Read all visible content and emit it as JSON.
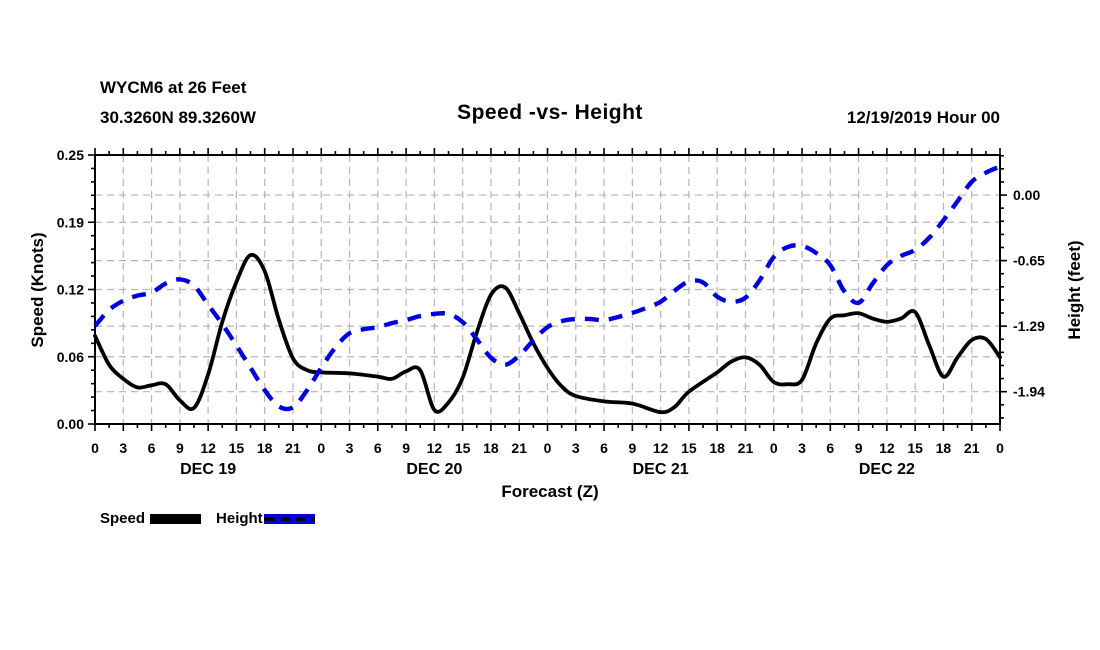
{
  "header": {
    "station_line1": "WYCM6 at 26 Feet",
    "station_line2": "30.3260N 89.3260W",
    "title": "Speed -vs- Height",
    "datetime": "12/19/2019 Hour 00"
  },
  "legend": {
    "speed_label": "Speed",
    "height_label": "Height"
  },
  "colors": {
    "speed": "#000000",
    "height": "#0000dd",
    "grid": "#b5b5b5",
    "axis": "#000000",
    "background": "#ffffff"
  },
  "chart_data": {
    "type": "line",
    "title": "Speed -vs- Height",
    "x_axis": {
      "label": "Forecast (Z)",
      "range_hours": [
        0,
        96
      ],
      "major_tick_every_h": 3,
      "minor_tick_every_h": 1.5,
      "hour_labels": [
        "0",
        "3",
        "6",
        "9",
        "12",
        "15",
        "18",
        "21",
        "0",
        "3",
        "6",
        "9",
        "12",
        "15",
        "18",
        "21",
        "0",
        "3",
        "6",
        "9",
        "12",
        "15",
        "18",
        "21",
        "0",
        "3",
        "6",
        "9",
        "12",
        "15",
        "18",
        "21",
        "0"
      ],
      "day_labels": [
        "DEC 19",
        "DEC 20",
        "DEC 21",
        "DEC 22"
      ]
    },
    "y_left": {
      "label": "Speed (Knots)",
      "ticks": [
        "0.25",
        "0.19",
        "0.12",
        "0.06",
        "0.00"
      ],
      "tick_values": [
        0.25,
        0.1875,
        0.125,
        0.0625,
        0
      ],
      "range": [
        0,
        0.25
      ],
      "minor_step": 0.0125
    },
    "y_right": {
      "label": "Height (feet)",
      "ticks": [
        "0.00",
        "-0.65",
        "-1.29",
        "-1.94"
      ],
      "tick_values": [
        0,
        -0.645,
        -1.29,
        -1.935
      ],
      "range": [
        -2.253,
        0.394
      ],
      "minor_step": 0.129
    },
    "grid": true,
    "legend_position": "bottom-left",
    "series": [
      {
        "name": "Speed",
        "axis": "left",
        "style": "solid",
        "color": "#000000",
        "points": [
          [
            0,
            0.082
          ],
          [
            1.5,
            0.055
          ],
          [
            3,
            0.042
          ],
          [
            4.5,
            0.034
          ],
          [
            6,
            0.036
          ],
          [
            7.5,
            0.037
          ],
          [
            9,
            0.022
          ],
          [
            10.5,
            0.015
          ],
          [
            12,
            0.046
          ],
          [
            13.5,
            0.095
          ],
          [
            15,
            0.132
          ],
          [
            16.5,
            0.157
          ],
          [
            18,
            0.142
          ],
          [
            19.5,
            0.097
          ],
          [
            21,
            0.061
          ],
          [
            22.5,
            0.05
          ],
          [
            24,
            0.048
          ],
          [
            27,
            0.047
          ],
          [
            30,
            0.044
          ],
          [
            31.5,
            0.042
          ],
          [
            33,
            0.049
          ],
          [
            34.5,
            0.05
          ],
          [
            36,
            0.013
          ],
          [
            37.5,
            0.02
          ],
          [
            39,
            0.043
          ],
          [
            40.5,
            0.085
          ],
          [
            42,
            0.12
          ],
          [
            43.5,
            0.127
          ],
          [
            45,
            0.103
          ],
          [
            46.5,
            0.075
          ],
          [
            48,
            0.052
          ],
          [
            49.5,
            0.035
          ],
          [
            51,
            0.026
          ],
          [
            54,
            0.021
          ],
          [
            57,
            0.019
          ],
          [
            60,
            0.011
          ],
          [
            61.5,
            0.016
          ],
          [
            63,
            0.03
          ],
          [
            66,
            0.048
          ],
          [
            67.5,
            0.058
          ],
          [
            69,
            0.062
          ],
          [
            70.5,
            0.055
          ],
          [
            72,
            0.039
          ],
          [
            73.5,
            0.037
          ],
          [
            75,
            0.041
          ],
          [
            76.5,
            0.075
          ],
          [
            78,
            0.098
          ],
          [
            79.5,
            0.101
          ],
          [
            81,
            0.103
          ],
          [
            82.5,
            0.098
          ],
          [
            84,
            0.095
          ],
          [
            85.5,
            0.098
          ],
          [
            87,
            0.104
          ],
          [
            88.5,
            0.073
          ],
          [
            90,
            0.044
          ],
          [
            91.5,
            0.062
          ],
          [
            93,
            0.078
          ],
          [
            94.5,
            0.079
          ],
          [
            96,
            0.062
          ]
        ]
      },
      {
        "name": "Height",
        "axis": "right",
        "style": "dashed",
        "color": "#0000dd",
        "points": [
          [
            0,
            -1.29
          ],
          [
            1.5,
            -1.13
          ],
          [
            3,
            -1.04
          ],
          [
            4.5,
            -0.99
          ],
          [
            6,
            -0.96
          ],
          [
            7.5,
            -0.87
          ],
          [
            9,
            -0.83
          ],
          [
            10.5,
            -0.89
          ],
          [
            12,
            -1.08
          ],
          [
            13.5,
            -1.27
          ],
          [
            15,
            -1.48
          ],
          [
            16.5,
            -1.7
          ],
          [
            18,
            -1.92
          ],
          [
            19.5,
            -2.08
          ],
          [
            21,
            -2.09
          ],
          [
            22.5,
            -1.92
          ],
          [
            24,
            -1.7
          ],
          [
            25.5,
            -1.5
          ],
          [
            27,
            -1.36
          ],
          [
            28.5,
            -1.32
          ],
          [
            30,
            -1.3
          ],
          [
            31.5,
            -1.26
          ],
          [
            33,
            -1.23
          ],
          [
            34.5,
            -1.19
          ],
          [
            36,
            -1.17
          ],
          [
            37.5,
            -1.17
          ],
          [
            39,
            -1.25
          ],
          [
            40.5,
            -1.42
          ],
          [
            42,
            -1.6
          ],
          [
            43.5,
            -1.67
          ],
          [
            45,
            -1.58
          ],
          [
            46.5,
            -1.43
          ],
          [
            48,
            -1.3
          ],
          [
            49.5,
            -1.24
          ],
          [
            51,
            -1.22
          ],
          [
            52.5,
            -1.22
          ],
          [
            54,
            -1.23
          ],
          [
            55.5,
            -1.2
          ],
          [
            57,
            -1.16
          ],
          [
            58.5,
            -1.11
          ],
          [
            60,
            -1.05
          ],
          [
            61.5,
            -0.94
          ],
          [
            63,
            -0.85
          ],
          [
            64.5,
            -0.86
          ],
          [
            66,
            -1.0
          ],
          [
            67.5,
            -1.05
          ],
          [
            69,
            -1.01
          ],
          [
            70.5,
            -0.84
          ],
          [
            72,
            -0.61
          ],
          [
            73.5,
            -0.51
          ],
          [
            75,
            -0.5
          ],
          [
            76.5,
            -0.57
          ],
          [
            78,
            -0.69
          ],
          [
            79.5,
            -0.95
          ],
          [
            81,
            -1.06
          ],
          [
            82.5,
            -0.87
          ],
          [
            84,
            -0.69
          ],
          [
            85.5,
            -0.6
          ],
          [
            87,
            -0.54
          ],
          [
            88.5,
            -0.42
          ],
          [
            90,
            -0.25
          ],
          [
            91.5,
            -0.06
          ],
          [
            93,
            0.13
          ],
          [
            94.5,
            0.22
          ],
          [
            96,
            0.28
          ]
        ]
      }
    ]
  }
}
